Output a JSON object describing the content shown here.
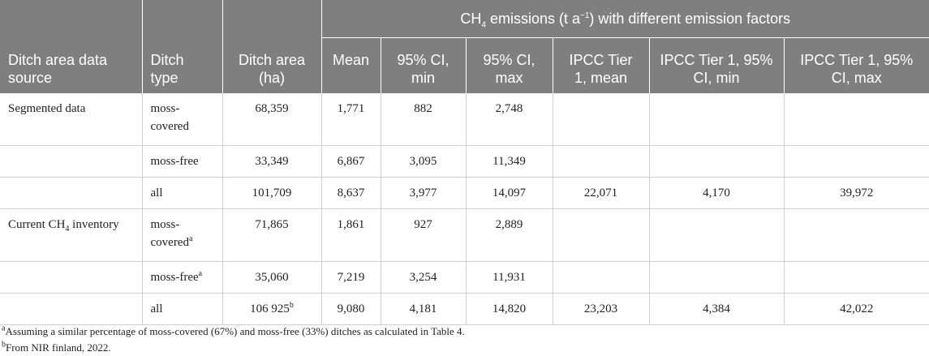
{
  "header": {
    "group_prefix": "CH",
    "group_sub": "4",
    "group_suffix": " emissions (t a",
    "group_sup": "−1",
    "group_end": ") with different emission factors",
    "columns": [
      "Ditch area data source",
      "Ditch type",
      "Ditch area (ha)",
      "Mean",
      "95% CI, min",
      "95% CI, max",
      "IPCC Tier 1, mean",
      "IPCC Tier 1, 95% CI, min",
      "IPCC Tier 1, 95% CI, max"
    ]
  },
  "rows": [
    {
      "source": "Segmented data",
      "source_sub": "",
      "type": "moss-covered",
      "type_sup": "",
      "area": "68,359",
      "area_sup": "",
      "mean": "1,771",
      "ci_min": "882",
      "ci_max": "2,748",
      "ipcc_mean": "",
      "ipcc_min": "",
      "ipcc_max": ""
    },
    {
      "source": "",
      "source_sub": "",
      "type": "moss-free",
      "type_sup": "",
      "area": "33,349",
      "area_sup": "",
      "mean": "6,867",
      "ci_min": "3,095",
      "ci_max": "11,349",
      "ipcc_mean": "",
      "ipcc_min": "",
      "ipcc_max": ""
    },
    {
      "source": "",
      "source_sub": "",
      "type": "all",
      "type_sup": "",
      "area": "101,709",
      "area_sup": "",
      "mean": "8,637",
      "ci_min": "3,977",
      "ci_max": "14,097",
      "ipcc_mean": "22,071",
      "ipcc_min": "4,170",
      "ipcc_max": "39,972"
    },
    {
      "source": "Current CH",
      "source_sub": "4",
      "source_end": " inventory",
      "type": "moss-covered",
      "type_sup": "a",
      "area": "71,865",
      "area_sup": "",
      "mean": "1,861",
      "ci_min": "927",
      "ci_max": "2,889",
      "ipcc_mean": "",
      "ipcc_min": "",
      "ipcc_max": ""
    },
    {
      "source": "",
      "source_sub": "",
      "type": "moss-free",
      "type_sup": "a",
      "area": "35,060",
      "area_sup": "",
      "mean": "7,219",
      "ci_min": "3,254",
      "ci_max": "11,931",
      "ipcc_mean": "",
      "ipcc_min": "",
      "ipcc_max": ""
    },
    {
      "source": "",
      "source_sub": "",
      "type": "all",
      "type_sup": "",
      "area": "106 925",
      "area_sup": "b",
      "mean": "9,080",
      "ci_min": "4,181",
      "ci_max": "14,820",
      "ipcc_mean": "23,203",
      "ipcc_min": "4,384",
      "ipcc_max": "42,022"
    }
  ],
  "footnotes": [
    {
      "mark": "a",
      "text": "Assuming a similar percentage of moss-covered (67%) and moss-free (33%) ditches as calculated in Table 4."
    },
    {
      "mark": "b",
      "text": "From NIR finland, 2022."
    }
  ]
}
